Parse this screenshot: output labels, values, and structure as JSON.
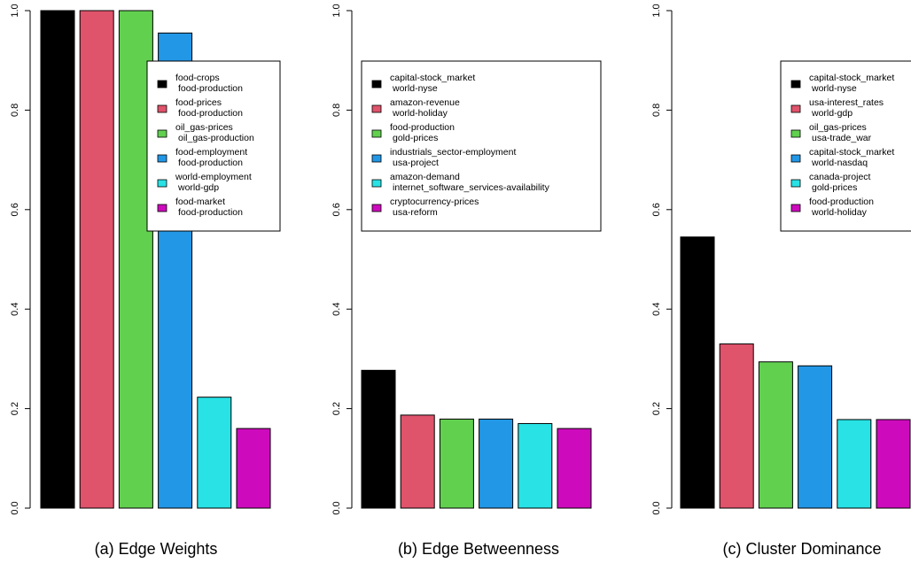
{
  "charts": [
    {
      "caption": "(a) Edge Weights",
      "type": "bar",
      "ylim": [
        0,
        1.0
      ],
      "yticks": [
        "0.0",
        "0.2",
        "0.4",
        "0.6",
        "0.8",
        "1.0"
      ],
      "values": [
        1.0,
        1.0,
        1.0,
        0.955,
        0.223,
        0.16
      ],
      "colors": [
        "#000000",
        "#df536b",
        "#61d04f",
        "#2297e6",
        "#28e2e5",
        "#cd0bbc"
      ],
      "legend": [
        [
          "food-crops",
          "food-production"
        ],
        [
          "food-prices",
          "food-production"
        ],
        [
          "oil_gas-prices",
          "oil_gas-production"
        ],
        [
          "food-employment",
          "food-production"
        ],
        [
          "world-employment",
          "world-gdp"
        ],
        [
          "food-market",
          "food-production"
        ]
      ],
      "legend_placement": "top-right"
    },
    {
      "caption": "(b) Edge Betweenness",
      "type": "bar",
      "ylim": [
        0,
        1.0
      ],
      "yticks": [
        "0.0",
        "0.2",
        "0.4",
        "0.6",
        "0.8",
        "1.0"
      ],
      "values": [
        0.277,
        0.187,
        0.179,
        0.179,
        0.17,
        0.16
      ],
      "colors": [
        "#000000",
        "#df536b",
        "#61d04f",
        "#2297e6",
        "#28e2e5",
        "#cd0bbc"
      ],
      "legend": [
        [
          "capital-stock_market",
          "world-nyse"
        ],
        [
          "amazon-revenue",
          "world-holiday"
        ],
        [
          "food-production",
          "gold-prices"
        ],
        [
          "industrials_sector-employment",
          "usa-project"
        ],
        [
          "amazon-demand",
          "internet_software_services-availability"
        ],
        [
          "cryptocurrency-prices",
          "usa-reform"
        ]
      ],
      "legend_placement": "top"
    },
    {
      "caption": "(c) Cluster Dominance",
      "type": "bar",
      "ylim": [
        0,
        1.0
      ],
      "yticks": [
        "0.0",
        "0.2",
        "0.4",
        "0.6",
        "0.8",
        "1.0"
      ],
      "values": [
        0.545,
        0.33,
        0.294,
        0.286,
        0.178,
        0.178
      ],
      "colors": [
        "#000000",
        "#df536b",
        "#61d04f",
        "#2297e6",
        "#28e2e5",
        "#cd0bbc"
      ],
      "legend": [
        [
          "capital-stock_market",
          "world-nyse"
        ],
        [
          "usa-interest_rates",
          "world-gdp"
        ],
        [
          "oil_gas-prices",
          "usa-trade_war"
        ],
        [
          "capital-stock_market",
          "world-nasdaq"
        ],
        [
          "canada-project",
          "gold-prices"
        ],
        [
          "food-production",
          "world-holiday"
        ]
      ],
      "legend_placement": "top-right"
    }
  ]
}
